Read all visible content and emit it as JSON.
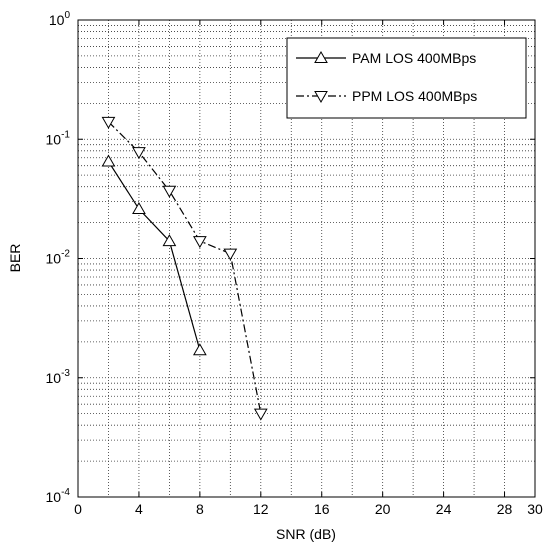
{
  "chart_data": {
    "type": "line",
    "title": "",
    "xlabel": "SNR (dB)",
    "ylabel": "BER",
    "xlim": [
      0,
      30
    ],
    "ylim": [
      0.0001,
      1
    ],
    "y_scale": "log",
    "x_ticks": [
      0,
      4,
      8,
      12,
      16,
      20,
      24,
      28,
      30
    ],
    "y_ticks": [
      {
        "base": "10",
        "exp": "-4",
        "value": 0.0001
      },
      {
        "base": "10",
        "exp": "-3",
        "value": 0.001
      },
      {
        "base": "10",
        "exp": "-2",
        "value": 0.01
      },
      {
        "base": "10",
        "exp": "-1",
        "value": 0.1
      },
      {
        "base": "10",
        "exp": "0",
        "value": 1
      }
    ],
    "grid": true,
    "legend_position": "top-right",
    "series": [
      {
        "name": "PAM LOS 400MBps",
        "line_style": "solid",
        "marker": "triangle-up",
        "color": "#000000",
        "x": [
          2,
          4,
          6,
          8
        ],
        "y": [
          0.065,
          0.026,
          0.014,
          0.0017
        ]
      },
      {
        "name": "PPM LOS 400MBps",
        "line_style": "dash-dot",
        "marker": "triangle-down",
        "color": "#000000",
        "x": [
          2,
          4,
          6,
          8,
          10,
          12
        ],
        "y": [
          0.14,
          0.078,
          0.037,
          0.014,
          0.011,
          0.0005
        ]
      }
    ]
  }
}
